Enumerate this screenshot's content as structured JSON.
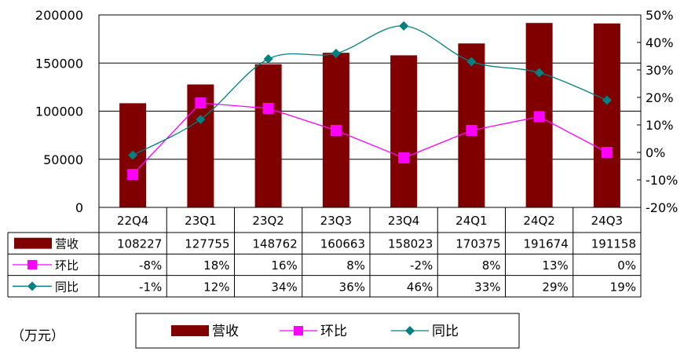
{
  "chart_data": {
    "type": "bar",
    "categories": [
      "22Q4",
      "23Q1",
      "23Q2",
      "23Q3",
      "23Q4",
      "24Q1",
      "24Q2",
      "24Q3"
    ],
    "series": [
      {
        "name": "营收",
        "kind": "bar",
        "axis": "left",
        "color": "#800000",
        "values": [
          108227,
          127755,
          148762,
          160663,
          158023,
          170375,
          191674,
          191158
        ],
        "labels": [
          "108227",
          "127755",
          "148762",
          "160663",
          "158023",
          "170375",
          "191674",
          "191158"
        ]
      },
      {
        "name": "环比",
        "kind": "line",
        "axis": "right",
        "color": "#FF00FF",
        "marker": "square",
        "values": [
          -8,
          18,
          16,
          8,
          -2,
          8,
          13,
          0
        ],
        "labels": [
          "-8%",
          "18%",
          "16%",
          "8%",
          "-2%",
          "8%",
          "13%",
          "0%"
        ]
      },
      {
        "name": "同比",
        "kind": "line",
        "axis": "right",
        "color": "#008080",
        "marker": "diamond",
        "values": [
          -1,
          12,
          34,
          36,
          46,
          33,
          29,
          19
        ],
        "labels": [
          "-1%",
          "12%",
          "34%",
          "36%",
          "46%",
          "33%",
          "29%",
          "19%"
        ]
      }
    ],
    "ylim_left": [
      0,
      200000
    ],
    "yticks_left": [
      "0",
      "50000",
      "100000",
      "150000",
      "200000"
    ],
    "ylim_right": [
      -20,
      50
    ],
    "yticks_right": [
      "-20%",
      "-10%",
      "0%",
      "10%",
      "20%",
      "30%",
      "40%",
      "50%"
    ],
    "grid": true,
    "data_table": true,
    "legend_position": "bottom",
    "unit_label": "（万元）"
  }
}
